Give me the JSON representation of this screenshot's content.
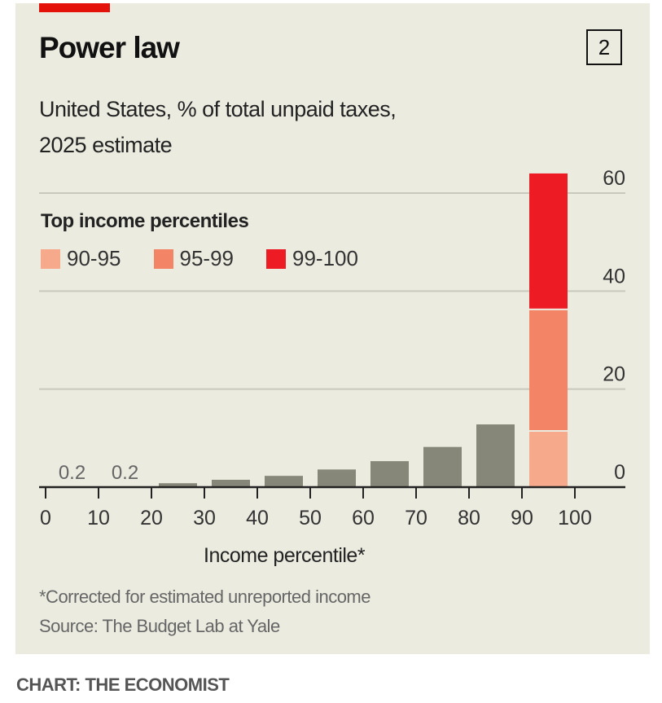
{
  "header": {
    "title": "Power law",
    "chart_number": "2",
    "subtitle_line1": "United States, % of total unpaid taxes,",
    "subtitle_line2": "2025 estimate"
  },
  "footer": {
    "note": "*Corrected for estimated unreported income",
    "source": "Source: The Budget Lab at Yale",
    "credit": "CHART: THE ECONOMIST"
  },
  "colors": {
    "background": "#ebebe0",
    "accent": "#e3120b",
    "gray_bar": "#878779",
    "p90_95": "#f7a98b",
    "p95_99": "#f48466",
    "p99_100": "#ed1c24"
  },
  "chart_data": {
    "type": "bar",
    "title": "Power law",
    "subtitle": "United States, % of total unpaid taxes, 2025 estimate",
    "xlabel": "Income percentile*",
    "ylabel": "% of total unpaid taxes",
    "ylim": [
      0,
      60
    ],
    "yticks": [
      "0",
      "20",
      "40",
      "60"
    ],
    "xticks": [
      "0",
      "10",
      "20",
      "30",
      "40",
      "50",
      "60",
      "70",
      "80",
      "90",
      "100"
    ],
    "grid": true,
    "y_axis_side": "right",
    "legend": {
      "title": "Top income percentiles",
      "placement": "top-left",
      "entries": [
        "90-95",
        "95-99",
        "99-100"
      ]
    },
    "bars": [
      {
        "range": [
          0,
          10
        ],
        "value": 0.2,
        "label": "0.2"
      },
      {
        "range": [
          10,
          20
        ],
        "value": 0.2,
        "label": "0.2"
      },
      {
        "range": [
          20,
          30
        ],
        "value": 0.8
      },
      {
        "range": [
          30,
          40
        ],
        "value": 1.5
      },
      {
        "range": [
          40,
          50
        ],
        "value": 2.3
      },
      {
        "range": [
          50,
          60
        ],
        "value": 3.6
      },
      {
        "range": [
          60,
          70
        ],
        "value": 5.3
      },
      {
        "range": [
          70,
          80
        ],
        "value": 8.2
      },
      {
        "range": [
          80,
          90
        ],
        "value": 12.8
      }
    ],
    "stacked_bar": {
      "range": [
        90,
        100
      ],
      "segments": [
        {
          "name": "90-95",
          "value": 11.3
        },
        {
          "name": "95-99",
          "value": 24.8
        },
        {
          "name": "99-100",
          "value": 27.9
        }
      ]
    }
  }
}
